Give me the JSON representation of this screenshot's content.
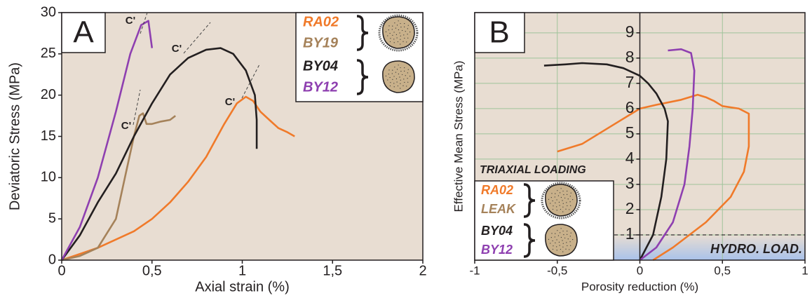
{
  "chart_data": [
    {
      "type": "line",
      "label": "A",
      "xlabel": "Axial strain (%)",
      "ylabel": "Deviatoric Stress (MPa)",
      "xlim": [
        0,
        2
      ],
      "ylim": [
        0,
        30
      ],
      "xticks": [
        0,
        {
          "value": 0.5,
          "label": "0,5"
        },
        1,
        {
          "value": 1.5,
          "label": "1,5"
        },
        2
      ],
      "yticks": [
        0,
        5,
        10,
        15,
        20,
        25,
        30
      ],
      "grid": false,
      "annotations": [
        "C'",
        "C'",
        "C'",
        "C'"
      ],
      "series": [
        {
          "name": "RA02",
          "color": "#f07a2a",
          "x": [
            0,
            0.2,
            0.4,
            0.5,
            0.6,
            0.7,
            0.8,
            0.9,
            0.97,
            1.02,
            1.06,
            1.1,
            1.15,
            1.2,
            1.25,
            1.29
          ],
          "values": [
            0,
            1.5,
            3.5,
            5,
            7,
            9.5,
            12.5,
            16.5,
            19,
            19.8,
            19.3,
            18,
            17,
            16,
            15.5,
            15
          ]
        },
        {
          "name": "BY19",
          "color": "#a5825a",
          "x": [
            0,
            0.1,
            0.2,
            0.3,
            0.35,
            0.4,
            0.43,
            0.45,
            0.47,
            0.5,
            0.55,
            0.6,
            0.63
          ],
          "values": [
            0,
            0.5,
            1.5,
            5,
            10,
            15,
            17.5,
            17.8,
            16.5,
            16.5,
            16.8,
            17,
            17.5
          ]
        },
        {
          "name": "BY04",
          "color": "#231f20",
          "x": [
            0,
            0.1,
            0.2,
            0.3,
            0.4,
            0.5,
            0.6,
            0.7,
            0.8,
            0.88,
            0.95,
            1.02,
            1.07,
            1.08,
            1.08
          ],
          "values": [
            0,
            3,
            7,
            10.5,
            15,
            19,
            22.5,
            24.5,
            25.5,
            25.7,
            25,
            23,
            20,
            17,
            13.5
          ]
        },
        {
          "name": "BY12",
          "color": "#8e3fb0",
          "x": [
            0,
            0.1,
            0.2,
            0.3,
            0.38,
            0.44,
            0.48,
            0.5
          ],
          "values": [
            0,
            4,
            10,
            18,
            25,
            28.5,
            29,
            25.7
          ]
        }
      ]
    },
    {
      "type": "line",
      "label": "B",
      "xlabel": "Porosity reduction (%)",
      "ylabel": "Effective Mean Stress (MPa)",
      "xlim": [
        -1,
        1
      ],
      "ylim": [
        0,
        9.8
      ],
      "xticks": [
        -1,
        {
          "value": -0.5,
          "label": "-0,5"
        },
        0,
        {
          "value": 0.5,
          "label": "0,5"
        },
        1
      ],
      "yticks": [
        1,
        2,
        3,
        4,
        5,
        6,
        7,
        8,
        9
      ],
      "grid": true,
      "threshold": 1,
      "annotations": [
        "TRIAXIAL LOADING",
        "HYDRO. LOAD."
      ],
      "legend": [
        {
          "label": "RA02",
          "color": "#f07a2a"
        },
        {
          "label": "LEAK",
          "color": "#a5825a"
        },
        {
          "label": "BY04",
          "color": "#231f20"
        },
        {
          "label": "BY12",
          "color": "#8e3fb0"
        }
      ],
      "series": [
        {
          "color": "#f07a2a",
          "x": [
            0.08,
            0.2,
            0.4,
            0.55,
            0.63,
            0.66,
            0.66,
            0.6,
            0.5,
            0.45,
            0.4,
            0.35,
            0.25,
            0.1,
            0,
            -0.2,
            -0.35,
            -0.5
          ],
          "values": [
            0,
            0.5,
            1.5,
            2.5,
            3.5,
            4.5,
            5.8,
            6,
            6.1,
            6.3,
            6.45,
            6.55,
            6.35,
            6.15,
            6,
            5.2,
            4.6,
            4.3
          ]
        },
        {
          "color": "#231f20",
          "x": [
            0,
            0.08,
            0.13,
            0.16,
            0.17,
            0.15,
            0.1,
            0.05,
            0,
            -0.1,
            -0.2,
            -0.35,
            -0.45,
            -0.58
          ],
          "values": [
            0,
            1,
            2.5,
            4,
            5.5,
            6,
            6.6,
            7,
            7.3,
            7.6,
            7.75,
            7.8,
            7.75,
            7.7
          ]
        },
        {
          "color": "#8e3fb0",
          "x": [
            0,
            0.1,
            0.2,
            0.27,
            0.3,
            0.32,
            0.33,
            0.31,
            0.25,
            0.17
          ],
          "values": [
            0,
            0.5,
            1.5,
            3,
            4.5,
            6,
            7.5,
            8.2,
            8.35,
            8.3
          ]
        }
      ]
    }
  ]
}
